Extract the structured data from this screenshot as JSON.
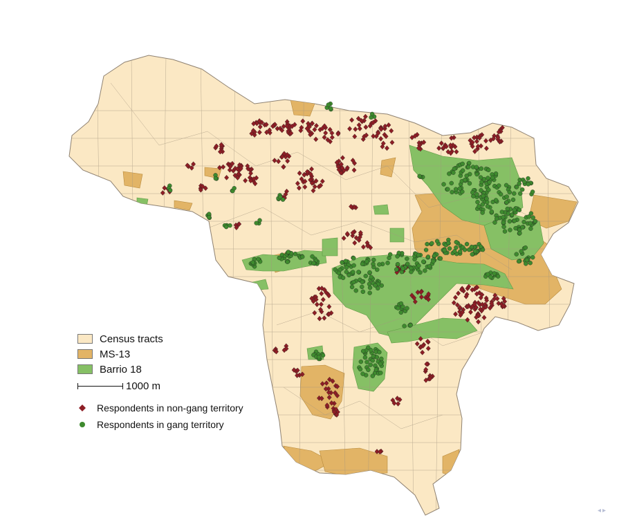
{
  "map": {
    "colors": {
      "census_tract_fill": "#FBE8C4",
      "tract_border": "#9c8e7a",
      "ms13_fill": "#E2B466",
      "barrio18_fill": "#86C065",
      "non_gang_marker": "#8E1E25",
      "gang_marker": "#3E8A2E"
    },
    "legend": {
      "census_tracts": "Census tracts",
      "ms13": "MS-13",
      "barrio18": "Barrio 18",
      "scale": "1000 m",
      "non_gang": "Respondents in non-gang territory",
      "gang": "Respondents in gang territory"
    },
    "icons": [
      "legend-swatch",
      "scale-bar",
      "diamond-marker",
      "dot-marker"
    ]
  }
}
